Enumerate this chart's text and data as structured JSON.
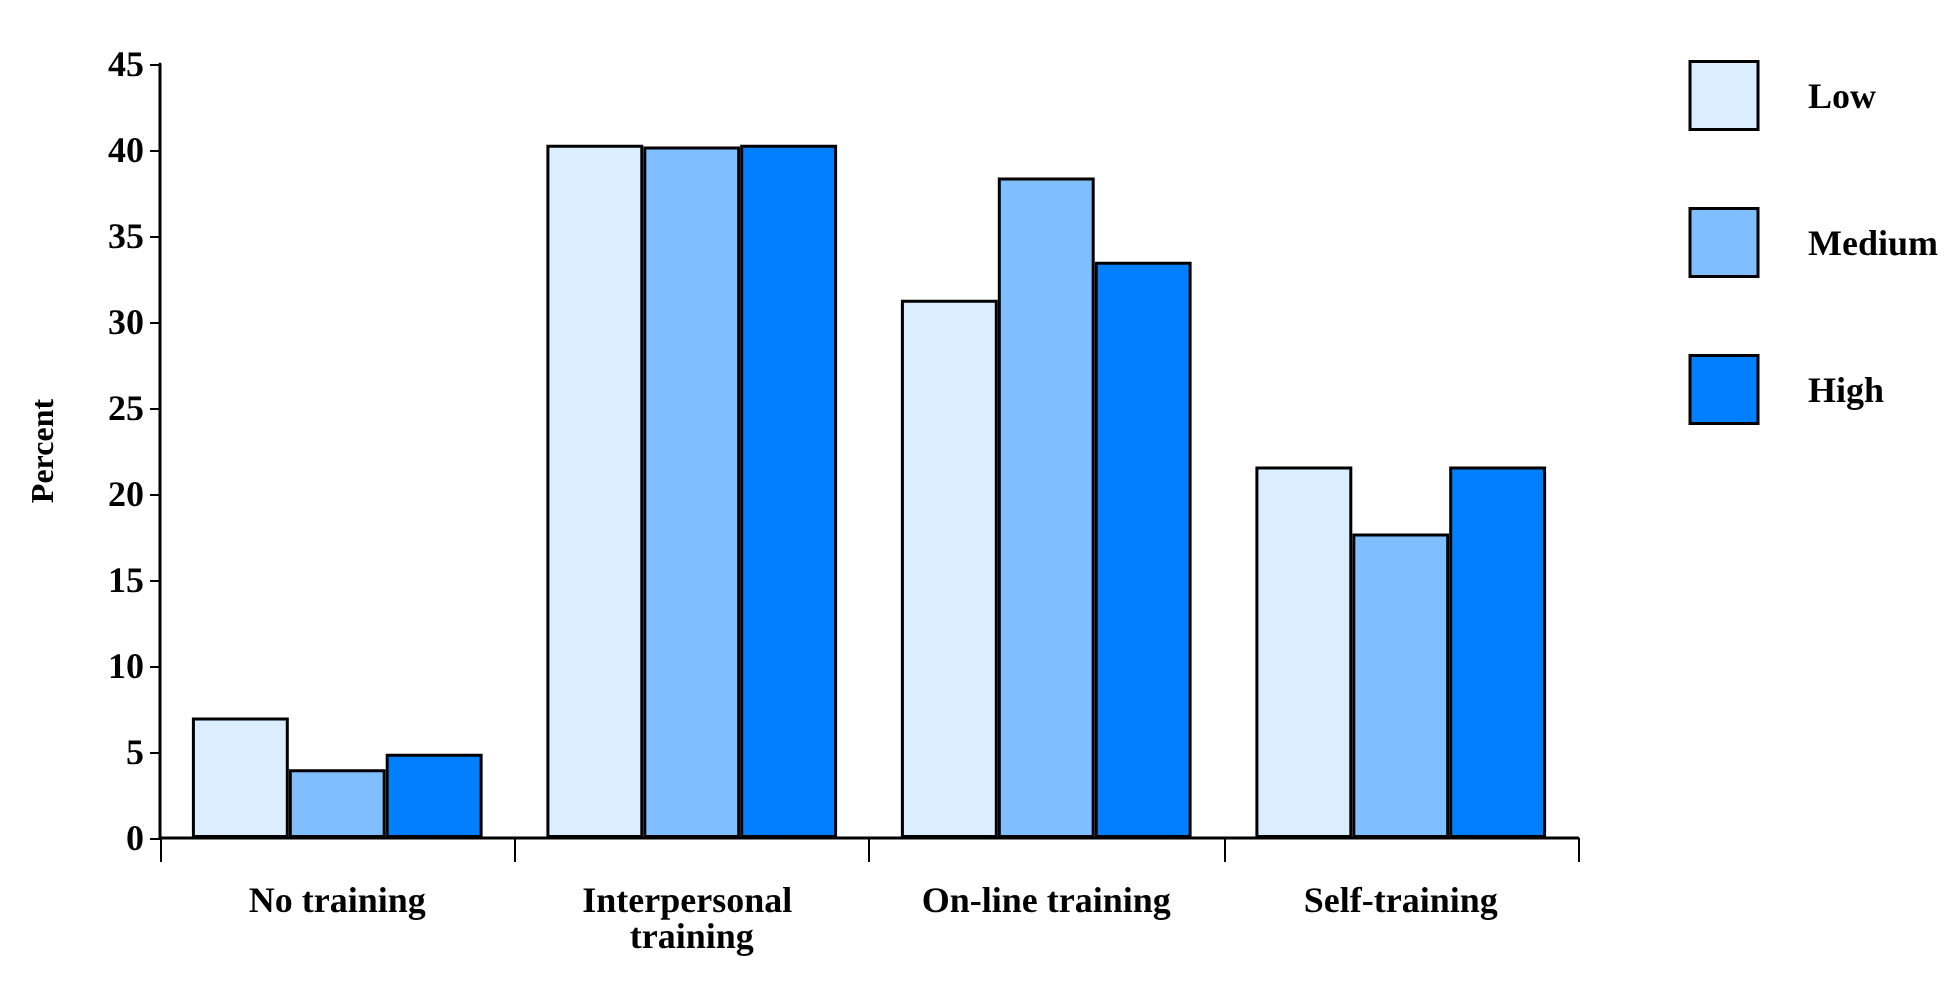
{
  "chart_data": {
    "type": "bar",
    "ylabel": "Percent",
    "categories": [
      "No training",
      "Interpersonal training",
      "On-line training",
      "Self-training"
    ],
    "series": [
      {
        "name": "Low",
        "color": "#dbeeff",
        "values": [
          7,
          40.3,
          31.3,
          21.6
        ]
      },
      {
        "name": "Medium",
        "color": "#80bfff",
        "values": [
          4,
          40.2,
          38.4,
          17.7
        ]
      },
      {
        "name": "High",
        "color": "#0080ff",
        "values": [
          4.9,
          40.3,
          33.5,
          21.6
        ]
      }
    ],
    "ylim": [
      0,
      45
    ],
    "yticks": [
      0,
      5,
      10,
      15,
      20,
      25,
      30,
      35,
      40,
      45
    ],
    "grid": false,
    "legend": "top right"
  }
}
